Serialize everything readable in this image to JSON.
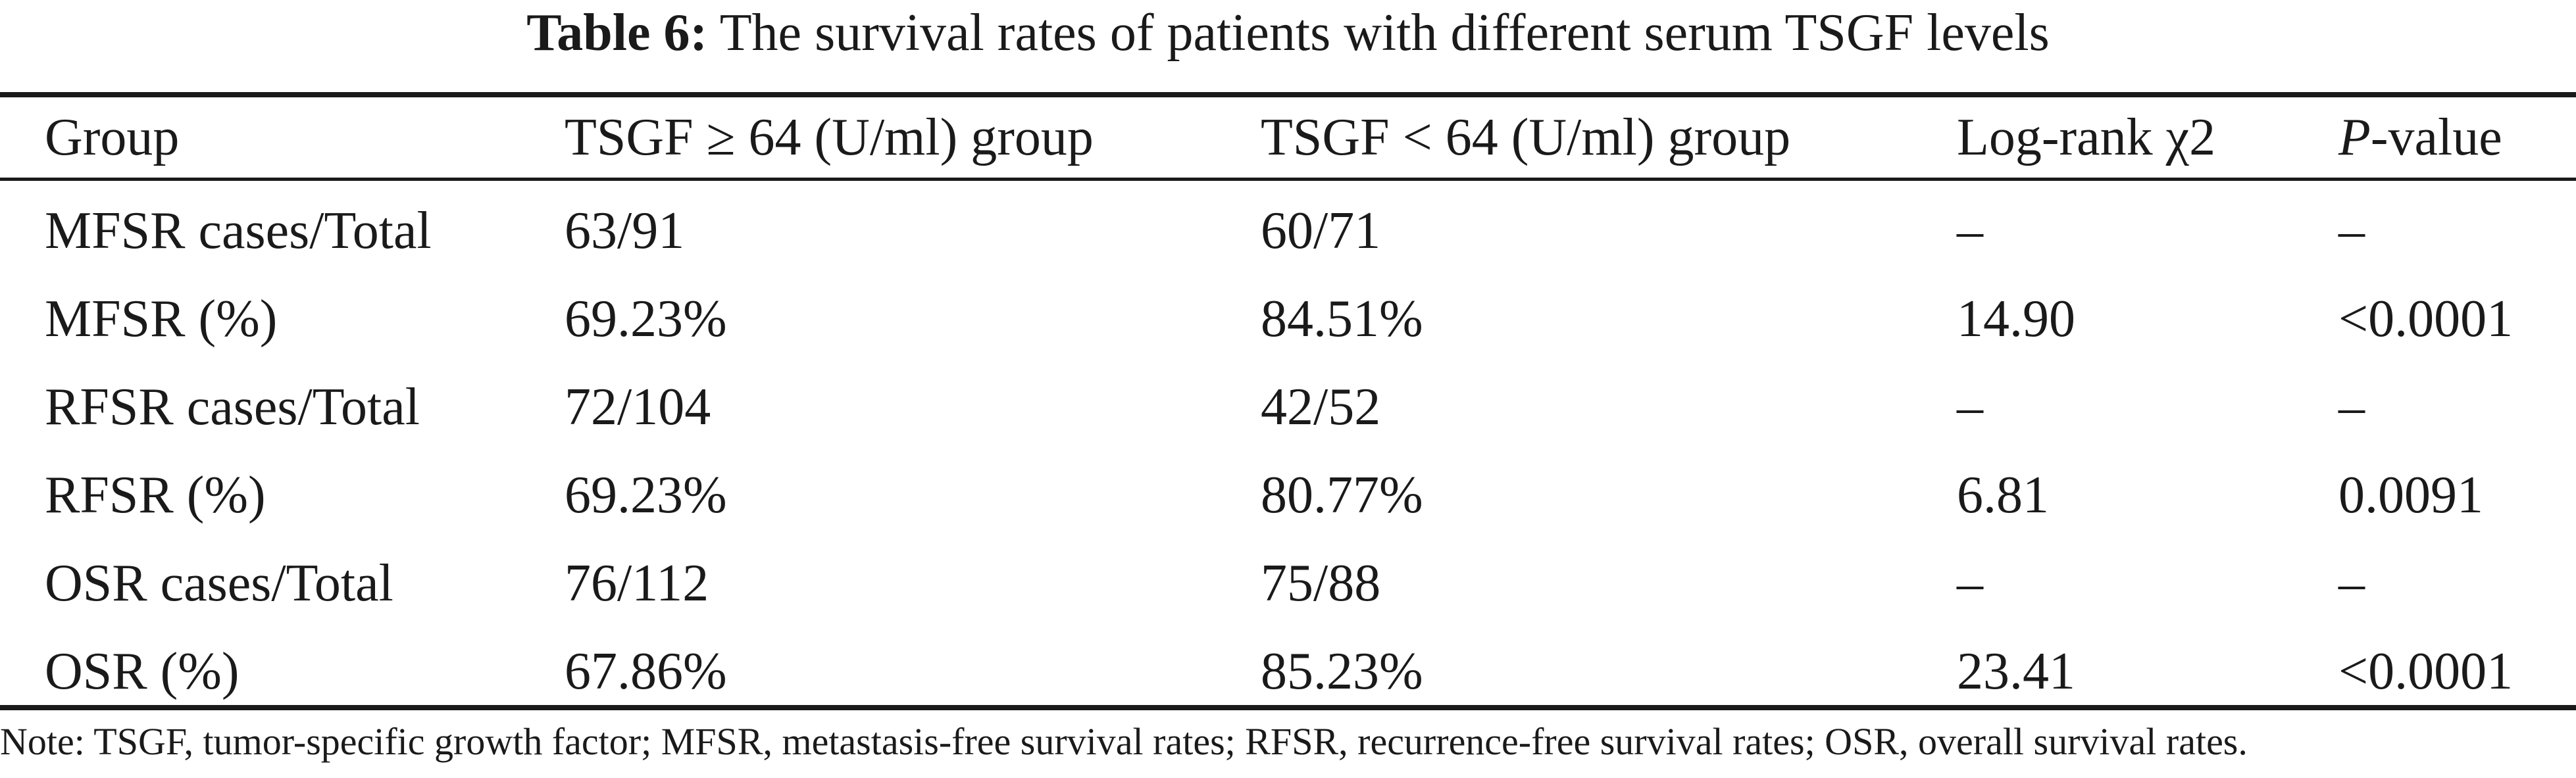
{
  "caption": {
    "label": "Table 6:",
    "text": "The survival rates of patients with different serum TSGF levels"
  },
  "table": {
    "headers": [
      "Group",
      "TSGF ≥ 64 (U/ml) group",
      "TSGF < 64 (U/ml) group",
      "Log-rank χ2",
      {
        "italic": "P",
        "rest": "-value"
      }
    ],
    "rows": [
      [
        "MFSR cases/Total",
        "63/91",
        "60/71",
        "–",
        "–"
      ],
      [
        "MFSR (%)",
        "69.23%",
        "84.51%",
        "14.90",
        "<0.0001"
      ],
      [
        "RFSR cases/Total",
        "72/104",
        "42/52",
        "–",
        "–"
      ],
      [
        "RFSR (%)",
        "69.23%",
        "80.77%",
        "6.81",
        "0.0091"
      ],
      [
        "OSR cases/Total",
        "76/112",
        "75/88",
        "–",
        "–"
      ],
      [
        "OSR (%)",
        "67.86%",
        "85.23%",
        "23.41",
        "<0.0001"
      ]
    ]
  },
  "note": "Note: TSGF, tumor-specific growth factor; MFSR, metastasis-free survival rates; RFSR, recurrence-free survival rates; OSR, overall survival rates."
}
